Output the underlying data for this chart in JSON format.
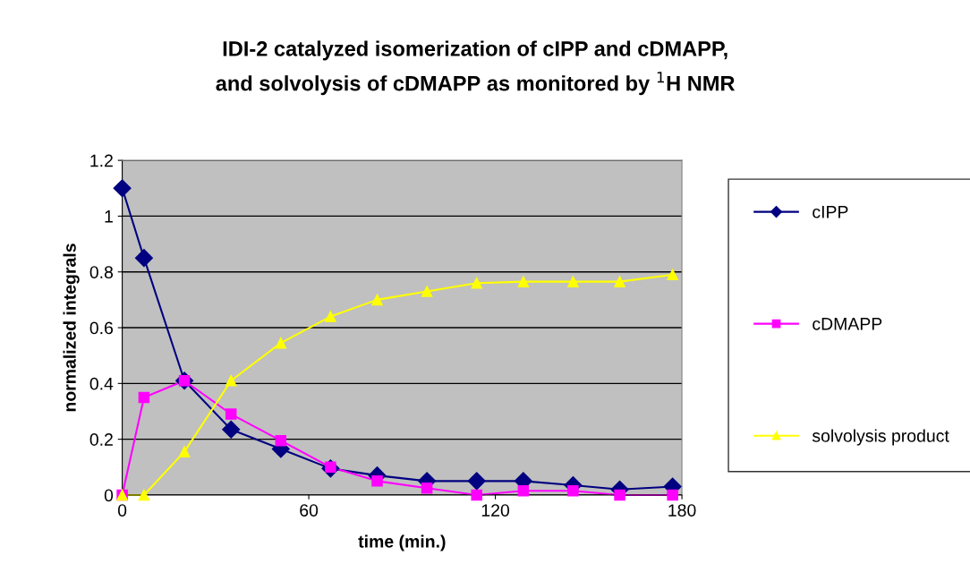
{
  "chart_data": {
    "type": "line",
    "title": "IDI-2 catalyzed isomerization of cIPP and cDMAPP,\nand solvolysis of cDMAPP as monitored by $^{1}$H NMR",
    "xlabel": "time (min.)",
    "ylabel": "normalized integrals",
    "x": [
      0,
      7,
      20,
      35,
      51,
      67,
      82,
      98,
      114,
      129,
      145,
      160,
      177
    ],
    "series": [
      {
        "name": "cIPP",
        "color": "#000080",
        "marker": "diamond",
        "values": [
          1.1,
          0.85,
          0.41,
          0.235,
          0.165,
          0.095,
          0.07,
          0.05,
          0.05,
          0.05,
          0.035,
          0.02,
          0.03
        ]
      },
      {
        "name": "cDMAPP",
        "color": "#ff00ff",
        "marker": "square",
        "values": [
          0,
          0.35,
          0.41,
          0.29,
          0.195,
          0.1,
          0.05,
          0.025,
          0,
          0.015,
          0.015,
          0,
          0
        ]
      },
      {
        "name": "solvolysis product",
        "color": "#ffff00",
        "marker": "triangle",
        "values": [
          0,
          0,
          0.155,
          0.41,
          0.545,
          0.64,
          0.7,
          0.73,
          0.76,
          0.765,
          0.765,
          0.765,
          0.79
        ]
      }
    ],
    "xlim": [
      0,
      180
    ],
    "xticks": [
      0,
      60,
      120,
      180
    ],
    "ylim": [
      0,
      1.2
    ],
    "yticks": [
      0,
      0.2,
      0.4,
      0.6,
      0.8,
      1,
      1.2
    ],
    "grid": "y",
    "legend": "right",
    "line_style": "solid"
  }
}
